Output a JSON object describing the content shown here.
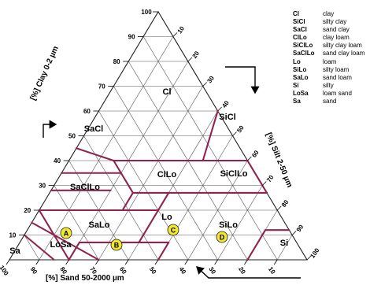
{
  "axes": {
    "clay": {
      "label": "[%] Clay 0-2 µm",
      "ticks": [
        "100",
        "90",
        "80",
        "70",
        "60",
        "50",
        "40",
        "30",
        "20",
        "10"
      ]
    },
    "silt": {
      "label": "[%] Silt 2-50 µm",
      "ticks": [
        "10",
        "20",
        "30",
        "40",
        "50",
        "60",
        "70",
        "80",
        "90",
        "100"
      ]
    },
    "sand": {
      "label": "[%] Sand 50-2000 µm",
      "ticks": [
        "100",
        "90",
        "80",
        "70",
        "60",
        "50",
        "40",
        "30",
        "20",
        "10"
      ]
    }
  },
  "zones": [
    "Cl",
    "SiCl",
    "SaCl",
    "ClLo",
    "SiClLo",
    "SaClLo",
    "Lo",
    "SaLo",
    "SiLo",
    "Sa",
    "LoSa",
    "Si"
  ],
  "markers": [
    "A",
    "B",
    "C",
    "D"
  ],
  "legend": [
    {
      "abbr": "Cl",
      "name": "clay"
    },
    {
      "abbr": "SiCl",
      "name": "silty clay"
    },
    {
      "abbr": "SaCl",
      "name": "sand clay"
    },
    {
      "abbr": "ClLo",
      "name": "clay loam"
    },
    {
      "abbr": "SiClLo",
      "name": "silty clay loam"
    },
    {
      "abbr": "SaClLo",
      "name": "sand clay loam"
    },
    {
      "abbr": "Lo",
      "name": "loam"
    },
    {
      "abbr": "SiLo",
      "name": "silty loam"
    },
    {
      "abbr": "SaLo",
      "name": "sand loam"
    },
    {
      "abbr": "Si",
      "name": "silty"
    },
    {
      "abbr": "LoSa",
      "name": "loam sand"
    },
    {
      "abbr": "Sa",
      "name": "sand"
    }
  ],
  "colors": {
    "boundary": "#8e2350",
    "grid": "#555555",
    "marker_fill": "#f3e92a"
  }
}
